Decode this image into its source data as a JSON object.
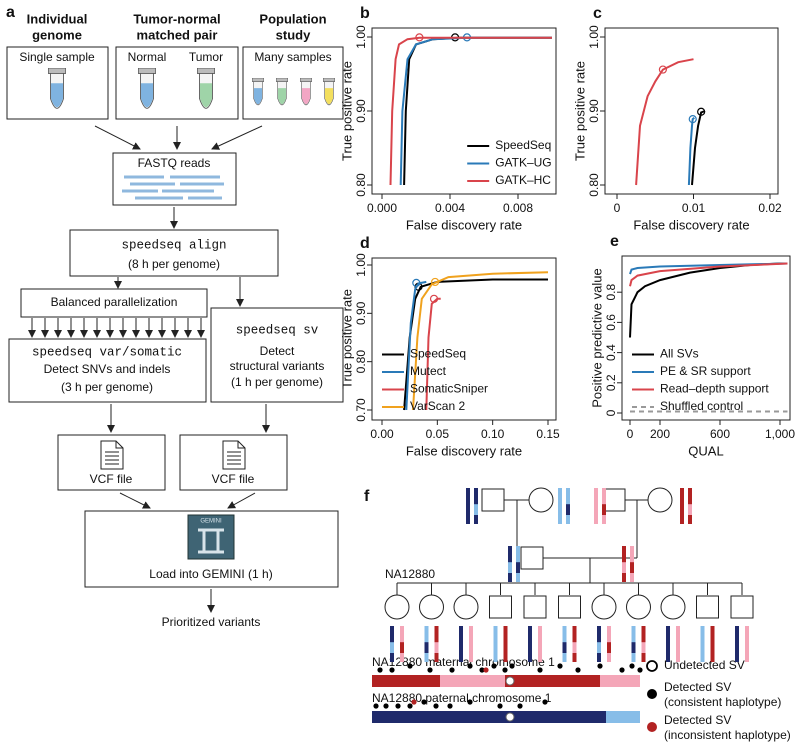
{
  "workflow": {
    "label": "a",
    "inputs": [
      {
        "title": [
          "Individual",
          "genome"
        ],
        "samples": [
          "Single sample"
        ]
      },
      {
        "title": [
          "Tumor-normal",
          "matched pair"
        ],
        "samples": [
          "Normal",
          "Tumor"
        ]
      },
      {
        "title": [
          "Population",
          "study"
        ],
        "samples": [
          "Many samples"
        ]
      }
    ],
    "reads": "FASTQ reads",
    "align": {
      "command": "speedseq align",
      "time": "(8 h per genome)"
    },
    "parallel": "Balanced parallelization",
    "var": {
      "command": "speedseq var/somatic",
      "desc": "Detect SNVs and indels",
      "time": "(3 h per genome)"
    },
    "sv": {
      "command": "speedseq sv",
      "desc": [
        "Detect",
        "structural variants"
      ],
      "time": "(1 h per genome)"
    },
    "vcf": [
      "VCF file",
      "VCF file"
    ],
    "gemini": {
      "logo": "GEMINI",
      "desc": "Load into GEMINI (1 h)"
    },
    "output": "Prioritized variants"
  },
  "chart_data": [
    {
      "type": "line",
      "label": "b",
      "xlabel": "False discovery rate",
      "ylabel": "True positive rate",
      "xlim": [
        0,
        0.01
      ],
      "ylim": [
        0.8,
        1.0
      ],
      "xticks": [
        {
          "value": 0,
          "label": "0.000"
        },
        {
          "value": 0.004,
          "label": "0.004"
        },
        {
          "value": 0.008,
          "label": "0.008"
        }
      ],
      "yticks": [
        {
          "value": 0.8,
          "label": "0.80"
        },
        {
          "value": 0.9,
          "label": "0.90"
        },
        {
          "value": 1.0,
          "label": "1.00"
        }
      ],
      "legend": "bottom-right",
      "series": [
        {
          "name": "SpeedSeq",
          "color": "#000000",
          "x": [
            0.0013,
            0.0014,
            0.0016,
            0.002,
            0.003,
            0.0045,
            0.01
          ],
          "values": [
            0.8,
            0.9,
            0.97,
            0.99,
            0.997,
            0.999,
            0.999
          ],
          "threshold": {
            "x": 0.0043,
            "y": 0.9995
          }
        },
        {
          "name": "GATK–UG",
          "color": "#2a7ab8",
          "x": [
            0.0011,
            0.0012,
            0.0015,
            0.002,
            0.003,
            0.005,
            0.01
          ],
          "values": [
            0.8,
            0.9,
            0.97,
            0.99,
            0.997,
            0.999,
            0.999
          ],
          "threshold": {
            "x": 0.005,
            "y": 0.9995
          }
        },
        {
          "name": "GATK–HC",
          "color": "#d9444b",
          "x": [
            0.0005,
            0.0006,
            0.0008,
            0.001,
            0.0015,
            0.0022,
            0.01
          ],
          "values": [
            0.8,
            0.9,
            0.97,
            0.99,
            0.997,
            0.999,
            0.999
          ],
          "threshold": {
            "x": 0.0022,
            "y": 0.9995
          }
        }
      ]
    },
    {
      "type": "line",
      "label": "c",
      "xlabel": "False discovery rate",
      "ylabel": "True positive rate",
      "xlim": [
        0,
        0.02
      ],
      "ylim": [
        0.8,
        1.0
      ],
      "xticks": [
        0,
        0.01,
        0.02
      ],
      "yticks": [
        {
          "value": 0.8,
          "label": "0.80"
        },
        {
          "value": 0.9,
          "label": "0.90"
        },
        {
          "value": 1.0,
          "label": "1.00"
        }
      ],
      "series": [
        {
          "color": "#d9444b",
          "x": [
            0.0025,
            0.003,
            0.004,
            0.005,
            0.006,
            0.008,
            0.01
          ],
          "values": [
            0.8,
            0.88,
            0.92,
            0.94,
            0.956,
            0.966,
            0.97
          ],
          "threshold": {
            "x": 0.006,
            "y": 0.956
          }
        },
        {
          "color": "#2a7ab8",
          "x": [
            0.0094,
            0.0096,
            0.0098,
            0.0099,
            0.0101
          ],
          "values": [
            0.8,
            0.85,
            0.88,
            0.889,
            0.891
          ],
          "threshold": {
            "x": 0.0099,
            "y": 0.889
          }
        },
        {
          "color": "#000000",
          "x": [
            0.0098,
            0.0102,
            0.0106,
            0.011,
            0.0115
          ],
          "values": [
            0.8,
            0.85,
            0.88,
            0.898,
            0.9
          ],
          "threshold": {
            "x": 0.011,
            "y": 0.899
          }
        }
      ]
    },
    {
      "type": "line",
      "label": "d",
      "xlabel": "False discovery rate",
      "ylabel": "True positive rate",
      "xlim": [
        0,
        0.15
      ],
      "ylim": [
        0.7,
        1.0
      ],
      "xticks": [
        {
          "value": 0,
          "label": "0.00"
        },
        {
          "value": 0.05,
          "label": "0.05"
        },
        {
          "value": 0.1,
          "label": "0.10"
        },
        {
          "value": 0.15,
          "label": "0.15"
        }
      ],
      "yticks": [
        {
          "value": 0.7,
          "label": "0.70"
        },
        {
          "value": 0.8,
          "label": "0.80"
        },
        {
          "value": 0.9,
          "label": "0.90"
        },
        {
          "value": 1.0,
          "label": "1.00"
        }
      ],
      "legend": "bottom-left",
      "series": [
        {
          "name": "SpeedSeq",
          "color": "#000000",
          "x": [
            0.02,
            0.025,
            0.03,
            0.035,
            0.05,
            0.1,
            0.15
          ],
          "values": [
            0.7,
            0.85,
            0.93,
            0.955,
            0.965,
            0.97,
            0.97
          ],
          "threshold": {
            "x": 0.033,
            "y": 0.955
          }
        },
        {
          "name": "Mutect",
          "color": "#2a7ab8",
          "x": [
            0.022,
            0.026,
            0.03,
            0.033,
            0.04
          ],
          "values": [
            0.7,
            0.88,
            0.95,
            0.962,
            0.965
          ],
          "threshold": {
            "x": 0.031,
            "y": 0.963
          }
        },
        {
          "name": "SomaticSniper",
          "color": "#d9444b",
          "x": [
            0.04,
            0.042,
            0.045,
            0.05,
            0.053
          ],
          "values": [
            0.7,
            0.85,
            0.92,
            0.93,
            0.93
          ],
          "threshold": {
            "x": 0.047,
            "y": 0.93
          }
        },
        {
          "name": "VarScan 2",
          "color": "#f0a21e",
          "x": [
            0.028,
            0.032,
            0.036,
            0.045,
            0.06,
            0.1,
            0.15
          ],
          "values": [
            0.7,
            0.85,
            0.93,
            0.96,
            0.975,
            0.982,
            0.985
          ],
          "threshold": {
            "x": 0.048,
            "y": 0.965
          }
        }
      ]
    },
    {
      "type": "line",
      "label": "e",
      "xlabel": "QUAL",
      "ylabel": "Positive predictive value",
      "xlim": [
        0,
        1000
      ],
      "ylim": [
        0,
        1.0
      ],
      "xticks": [
        0,
        200,
        600,
        {
          "value": 1000,
          "label": "1,000"
        }
      ],
      "yticks": [
        0,
        0.2,
        0.4,
        0.6,
        0.8
      ],
      "legend": "bottom-left",
      "series": [
        {
          "name": "All SVs",
          "color": "#000000",
          "x": [
            0,
            10,
            50,
            100,
            200,
            400,
            600,
            800,
            1000,
            1050
          ],
          "values": [
            0.5,
            0.72,
            0.8,
            0.84,
            0.88,
            0.93,
            0.96,
            0.98,
            0.99,
            0.99
          ]
        },
        {
          "name": "PE & SR support",
          "color": "#2a7ab8",
          "x": [
            0,
            10,
            50,
            200,
            600,
            1050
          ],
          "values": [
            0.92,
            0.95,
            0.96,
            0.97,
            0.98,
            0.99
          ]
        },
        {
          "name": "Read–depth support",
          "color": "#d9444b",
          "x": [
            0,
            10,
            50,
            200,
            600,
            1050
          ],
          "values": [
            0.84,
            0.88,
            0.91,
            0.94,
            0.97,
            0.99
          ]
        },
        {
          "name": "Shuffled control",
          "color": "#999999",
          "dash": true,
          "x": [
            0,
            1050
          ],
          "values": [
            0.01,
            0.01
          ]
        }
      ]
    }
  ],
  "pedigree": {
    "label": "f",
    "proband": "NA12880",
    "chromosomes": [
      "NA12880 maternal chromosome 1",
      "NA12880 paternal chromosome 1"
    ],
    "legend": [
      [
        "Undetected SV"
      ],
      [
        "Detected SV",
        "(consistent haplotype)"
      ],
      [
        "Detected SV",
        "(inconsistent haplotype)"
      ]
    ]
  }
}
